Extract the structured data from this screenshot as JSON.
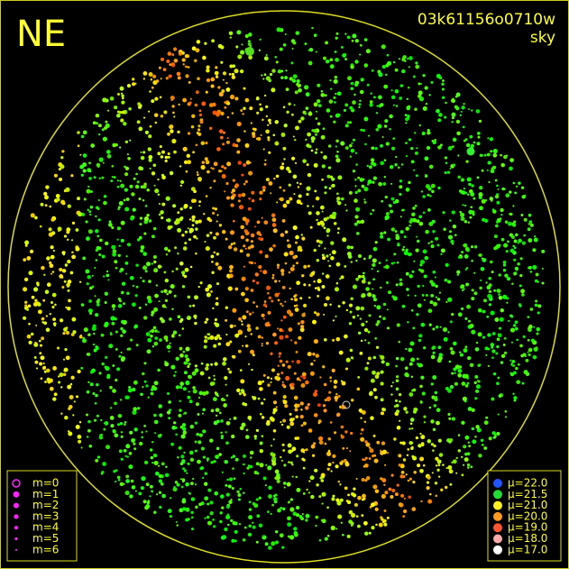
{
  "header": {
    "direction": "NE",
    "frame_id": "03k61156o0710w",
    "mode": "sky"
  },
  "magnitude_legend": [
    "m=0",
    "m=1",
    "m=2",
    "m=3",
    "m=4",
    "m=5",
    "m=6"
  ],
  "brightness_legend": [
    "μ=22.0",
    "μ=21.5",
    "μ=21.0",
    "μ=20.0",
    "μ=19.0",
    "μ=18.0",
    "μ=17.0"
  ]
}
